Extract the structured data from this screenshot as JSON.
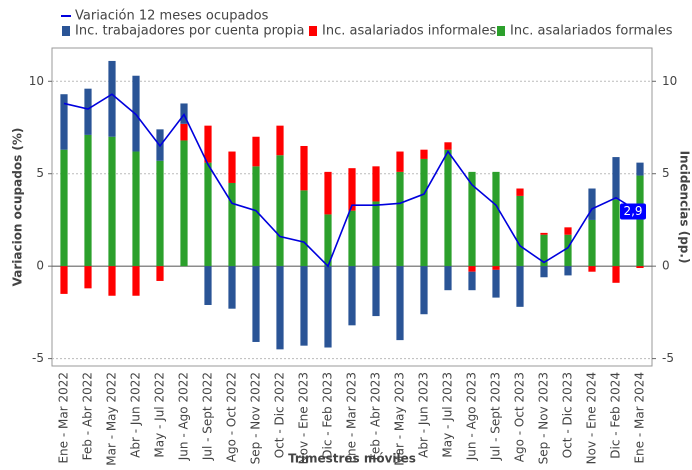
{
  "chart_data": {
    "type": "bar-line",
    "x_label": "Trimestres móviles",
    "y_label": "Variacion ocupados (%)",
    "y2_label": "Incidencias (pp.)",
    "categories": [
      "Ene - Mar 2022",
      "Feb - Abr 2022",
      "Mar - May 2022",
      "Abr - Jun 2022",
      "May - Jul 2022",
      "Jun - Ago 2022",
      "Jul - Sept 2022",
      "Ago - Oct 2022",
      "Sep - Nov 2022",
      "Oct - Dic 2022",
      "Nov - Ene 2023",
      "Dic - Feb 2023",
      "Ene - Mar 2023",
      "Feb - Abr 2023",
      "Mar - May 2023",
      "Abr - Jun 2023",
      "May - Jul 2023",
      "Jun - Ago 2023",
      "Jul - Sept 2023",
      "Ago - Oct 2023",
      "Sep - Nov 2023",
      "Oct - Dic 2023",
      "Nov - Ene 2024",
      "Dic - Feb 2024",
      "Ene - Mar 2024"
    ],
    "series": [
      {
        "name": "Variación 12 meses ocupados",
        "type": "line",
        "color": "#0000dd",
        "values": [
          8.8,
          8.5,
          9.3,
          8.2,
          6.5,
          8.2,
          5.5,
          3.4,
          3.0,
          1.6,
          1.3,
          0.0,
          3.3,
          3.3,
          3.4,
          3.9,
          6.2,
          4.4,
          3.3,
          1.1,
          0.2,
          1.0,
          3.1,
          3.7,
          2.9
        ]
      },
      {
        "name": "Inc. trabajadores por cuenta propia",
        "type": "bar",
        "color": "#2a5496",
        "values": [
          3.0,
          2.5,
          4.1,
          4.1,
          1.7,
          1.1,
          -2.1,
          -2.3,
          -4.1,
          -4.5,
          -4.3,
          -4.4,
          -3.2,
          -2.7,
          -4.0,
          -2.6,
          -1.3,
          -1.0,
          -1.5,
          -2.2,
          -0.6,
          -0.5,
          1.7,
          2.3,
          0.7
        ]
      },
      {
        "name": "Inc. asalariados informales",
        "type": "bar",
        "color": "#ff0000",
        "values": [
          -1.5,
          -1.2,
          -1.6,
          -1.6,
          -0.8,
          0.9,
          2.0,
          1.7,
          1.6,
          1.6,
          2.4,
          2.3,
          2.3,
          1.9,
          1.1,
          0.5,
          0.4,
          -0.3,
          -0.2,
          0.4,
          0.1,
          0.4,
          -0.3,
          -0.9,
          -0.1
        ]
      },
      {
        "name": "Inc. asalariados formales",
        "type": "bar",
        "color": "#2ca02c",
        "values": [
          6.3,
          7.1,
          7.0,
          6.2,
          5.7,
          6.8,
          5.6,
          4.5,
          5.4,
          6.0,
          4.1,
          2.8,
          3.0,
          3.5,
          5.1,
          5.8,
          6.3,
          5.1,
          5.1,
          3.8,
          1.7,
          1.7,
          2.5,
          3.6,
          4.9
        ]
      }
    ],
    "end_label": {
      "value": 2.9,
      "label": "2,9"
    },
    "ylim": [
      -5.4,
      11.8
    ],
    "yticks": [
      -5,
      0,
      5,
      10
    ],
    "y2lim": [
      -5.4,
      11.8
    ],
    "y2ticks": [
      -5,
      0,
      5,
      10
    ],
    "grid": true
  }
}
